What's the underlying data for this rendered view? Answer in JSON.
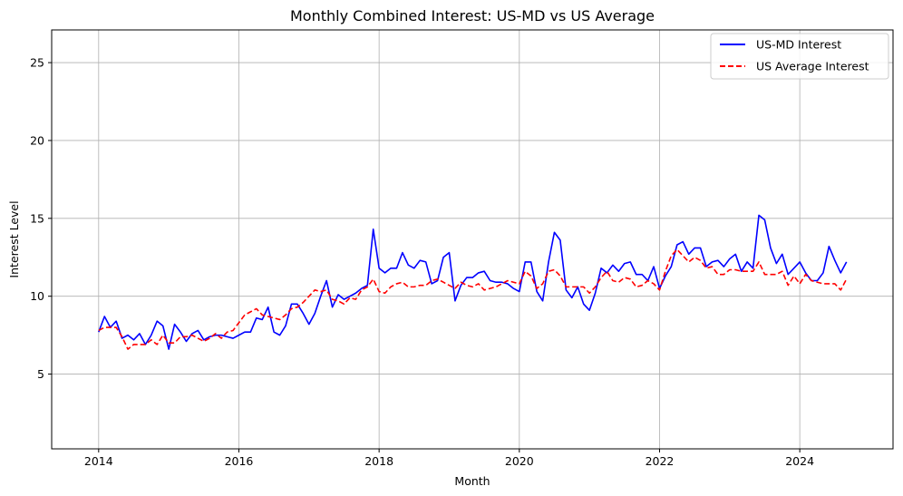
{
  "chart_data": {
    "type": "line",
    "title": "Monthly Combined Interest: US-MD vs US Average",
    "xlabel": "Month",
    "ylabel": "Interest Level",
    "xlim": [
      2013.33,
      2025.33
    ],
    "ylim": [
      0.2,
      27.1
    ],
    "xticks": [
      2014,
      2016,
      2018,
      2020,
      2022,
      2024
    ],
    "yticks": [
      5,
      10,
      15,
      20,
      25
    ],
    "grid": true,
    "legend_position": "top-right",
    "x_start": 2014.0,
    "x_step_months": 1,
    "series": [
      {
        "name": "US-MD Interest",
        "color": "#0000ff",
        "dash": "solid",
        "values": [
          7.7,
          8.7,
          8.0,
          8.4,
          7.3,
          7.5,
          7.2,
          7.6,
          6.9,
          7.5,
          8.4,
          8.1,
          6.6,
          8.2,
          7.7,
          7.1,
          7.6,
          7.8,
          7.2,
          7.4,
          7.5,
          7.5,
          7.4,
          7.3,
          7.5,
          7.7,
          7.7,
          8.6,
          8.5,
          9.3,
          7.7,
          7.5,
          8.1,
          9.5,
          9.5,
          8.9,
          8.2,
          8.9,
          10.0,
          11.0,
          9.3,
          10.1,
          9.8,
          10.0,
          10.2,
          10.5,
          10.7,
          14.3,
          11.8,
          11.5,
          11.8,
          11.8,
          12.8,
          12.0,
          11.8,
          12.3,
          12.2,
          10.8,
          11.0,
          12.5,
          12.8,
          9.7,
          10.7,
          11.2,
          11.2,
          11.5,
          11.6,
          11.0,
          10.9,
          10.9,
          10.8,
          10.5,
          10.3,
          12.2,
          12.2,
          10.3,
          9.7,
          12.2,
          14.1,
          13.6,
          10.4,
          9.9,
          10.6,
          9.5,
          9.1,
          10.2,
          11.8,
          11.5,
          12.0,
          11.6,
          12.1,
          12.2,
          11.4,
          11.4,
          11.0,
          11.9,
          10.5,
          11.3,
          11.9,
          13.3,
          13.5,
          12.7,
          13.1,
          13.1,
          11.9,
          12.2,
          12.3,
          11.9,
          12.4,
          12.7,
          11.6,
          12.2,
          11.8,
          15.2,
          14.9,
          13.1,
          12.1,
          12.7,
          11.4,
          11.8,
          12.2,
          11.5,
          11.0,
          11.0,
          11.5,
          13.2,
          12.3,
          11.5,
          12.2
        ]
      },
      {
        "name": "US Average Interest",
        "color": "#ff0000",
        "dash": "dashed",
        "values": [
          7.8,
          8.0,
          8.0,
          8.0,
          7.4,
          6.6,
          6.9,
          6.9,
          6.9,
          7.2,
          6.9,
          7.5,
          7.0,
          7.0,
          7.4,
          7.4,
          7.5,
          7.3,
          7.1,
          7.3,
          7.6,
          7.3,
          7.7,
          7.8,
          8.3,
          8.8,
          9.0,
          9.2,
          8.8,
          8.7,
          8.6,
          8.5,
          8.8,
          9.2,
          9.3,
          9.6,
          10.0,
          10.4,
          10.3,
          10.4,
          9.8,
          9.7,
          9.5,
          9.9,
          9.8,
          10.4,
          10.6,
          11.1,
          10.3,
          10.2,
          10.6,
          10.8,
          10.9,
          10.6,
          10.6,
          10.7,
          10.7,
          11.0,
          11.1,
          10.9,
          10.7,
          10.5,
          10.9,
          10.7,
          10.6,
          10.8,
          10.4,
          10.5,
          10.6,
          10.8,
          11.0,
          10.9,
          10.8,
          11.6,
          11.3,
          10.5,
          10.8,
          11.6,
          11.7,
          11.3,
          10.6,
          10.6,
          10.6,
          10.6,
          10.2,
          10.6,
          11.2,
          11.6,
          11.0,
          10.9,
          11.2,
          11.1,
          10.6,
          10.7,
          11.0,
          10.8,
          10.4,
          11.6,
          12.6,
          13.0,
          12.6,
          12.2,
          12.5,
          12.3,
          11.8,
          11.9,
          11.4,
          11.4,
          11.7,
          11.7,
          11.6,
          11.6,
          11.6,
          12.2,
          11.4,
          11.4,
          11.4,
          11.6,
          10.7,
          11.3,
          10.8,
          11.4,
          11.0,
          10.9,
          10.8,
          10.8,
          10.8,
          10.4,
          11.1
        ]
      }
    ]
  }
}
